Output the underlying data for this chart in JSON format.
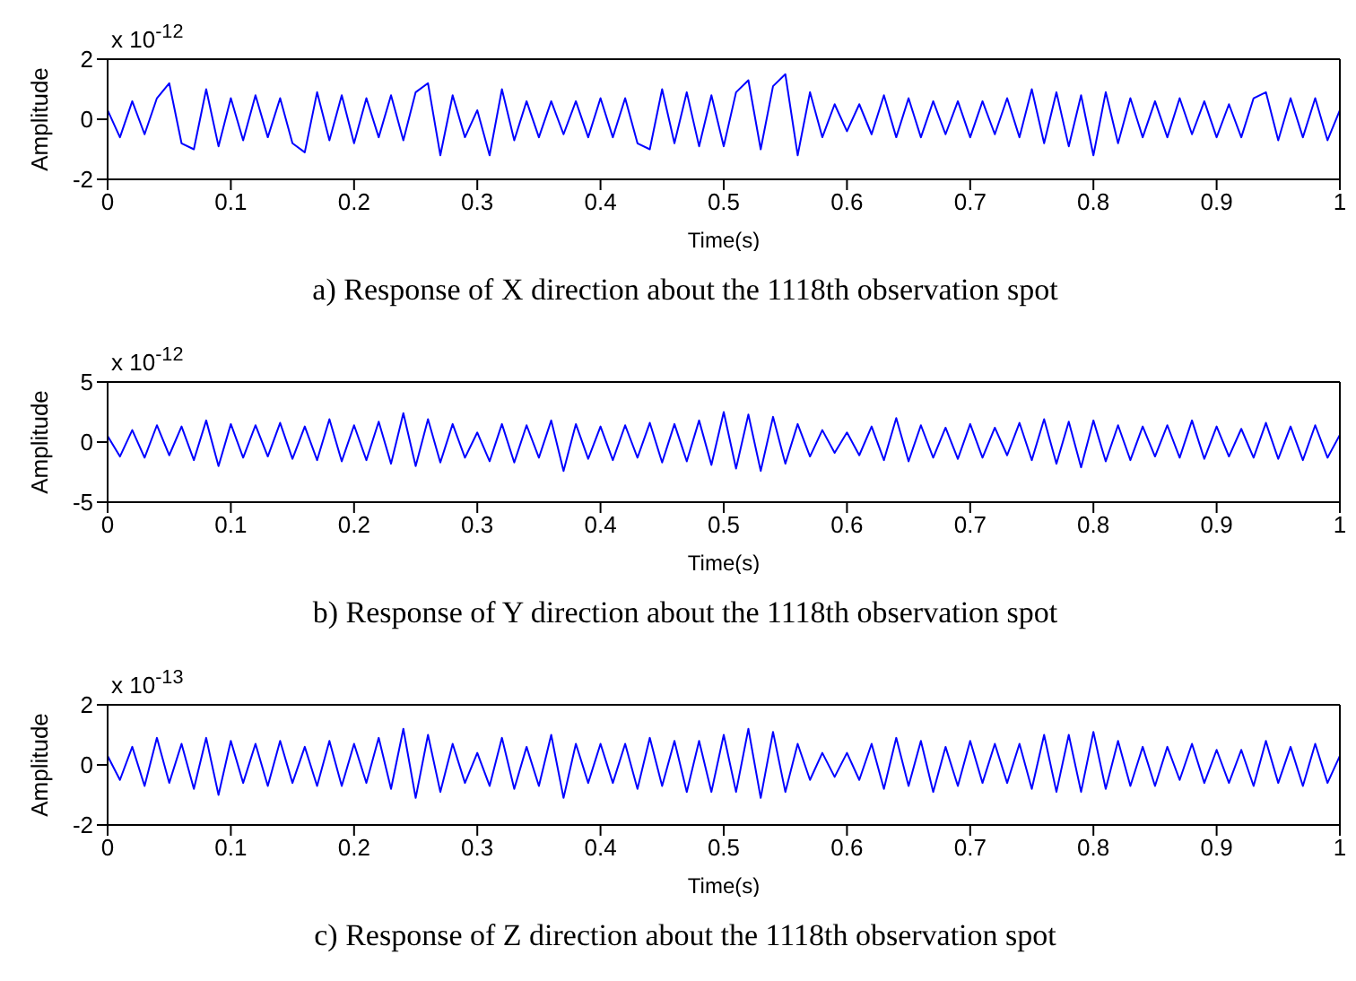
{
  "chart_data": [
    {
      "type": "line",
      "title": "a) Response of X direction about the 1118th observation spot",
      "xlabel": "Time(s)",
      "ylabel": "Amplitude",
      "annotations": [
        "x 10$^{-12}$"
      ],
      "xlim": [
        0,
        1
      ],
      "xticks": [
        0,
        0.1,
        0.2,
        0.3,
        0.4,
        0.5,
        0.6,
        0.7,
        0.8,
        0.9,
        1
      ],
      "ylim": [
        -2,
        2
      ],
      "yticks": [
        -2,
        0,
        2
      ],
      "x": [
        0,
        0.01,
        0.02,
        0.03,
        0.04,
        0.05,
        0.06,
        0.07,
        0.08,
        0.09,
        0.1,
        0.11,
        0.12,
        0.13,
        0.14,
        0.15,
        0.16,
        0.17,
        0.18,
        0.19,
        0.2,
        0.21,
        0.22,
        0.23,
        0.24,
        0.25,
        0.26,
        0.27,
        0.28,
        0.29,
        0.3,
        0.31,
        0.32,
        0.33,
        0.34,
        0.35,
        0.36,
        0.37,
        0.38,
        0.39,
        0.4,
        0.41,
        0.42,
        0.43,
        0.44,
        0.45,
        0.46,
        0.47,
        0.48,
        0.49,
        0.5,
        0.51,
        0.52,
        0.53,
        0.54,
        0.55,
        0.56,
        0.57,
        0.58,
        0.59,
        0.6,
        0.61,
        0.62,
        0.63,
        0.64,
        0.65,
        0.66,
        0.67,
        0.68,
        0.69,
        0.7,
        0.71,
        0.72,
        0.73,
        0.74,
        0.75,
        0.76,
        0.77,
        0.78,
        0.79,
        0.8,
        0.81,
        0.82,
        0.83,
        0.84,
        0.85,
        0.86,
        0.87,
        0.88,
        0.89,
        0.9,
        0.91,
        0.92,
        0.93,
        0.94,
        0.95,
        0.96,
        0.97,
        0.98,
        0.99,
        1
      ],
      "series": [
        {
          "color": "#0000ff",
          "values": [
            0.3,
            -0.6,
            0.6,
            -0.5,
            0.7,
            1.2,
            -0.8,
            -1.0,
            1.0,
            -0.9,
            0.7,
            -0.7,
            0.8,
            -0.6,
            0.7,
            -0.8,
            -1.1,
            0.9,
            -0.7,
            0.8,
            -0.8,
            0.7,
            -0.6,
            0.8,
            -0.7,
            0.9,
            1.2,
            -1.2,
            0.8,
            -0.6,
            0.3,
            -1.2,
            1.0,
            -0.7,
            0.6,
            -0.6,
            0.6,
            -0.5,
            0.6,
            -0.6,
            0.7,
            -0.6,
            0.7,
            -0.8,
            -1.0,
            1.0,
            -0.8,
            0.9,
            -0.9,
            0.8,
            -0.9,
            0.9,
            1.3,
            -1.0,
            1.1,
            1.5,
            -1.2,
            0.9,
            -0.6,
            0.5,
            -0.4,
            0.5,
            -0.5,
            0.8,
            -0.6,
            0.7,
            -0.6,
            0.6,
            -0.5,
            0.6,
            -0.6,
            0.6,
            -0.5,
            0.7,
            -0.6,
            1.0,
            -0.8,
            0.9,
            -0.9,
            0.8,
            -1.2,
            0.9,
            -0.8,
            0.7,
            -0.6,
            0.6,
            -0.6,
            0.7,
            -0.5,
            0.6,
            -0.6,
            0.5,
            -0.6,
            0.7,
            0.9,
            -0.7,
            0.7,
            -0.6,
            0.7,
            -0.7,
            0.3
          ]
        }
      ]
    },
    {
      "type": "line",
      "title": "b) Response of Y direction about the 1118th observation spot",
      "xlabel": "Time(s)",
      "ylabel": "Amplitude",
      "annotations": [
        "x 10$^{-12}$"
      ],
      "xlim": [
        0,
        1
      ],
      "xticks": [
        0,
        0.1,
        0.2,
        0.3,
        0.4,
        0.5,
        0.6,
        0.7,
        0.8,
        0.9,
        1
      ],
      "ylim": [
        -5,
        5
      ],
      "yticks": [
        -5,
        0,
        5
      ],
      "x": [
        0,
        0.01,
        0.02,
        0.03,
        0.04,
        0.05,
        0.06,
        0.07,
        0.08,
        0.09,
        0.1,
        0.11,
        0.12,
        0.13,
        0.14,
        0.15,
        0.16,
        0.17,
        0.18,
        0.19,
        0.2,
        0.21,
        0.22,
        0.23,
        0.24,
        0.25,
        0.26,
        0.27,
        0.28,
        0.29,
        0.3,
        0.31,
        0.32,
        0.33,
        0.34,
        0.35,
        0.36,
        0.37,
        0.38,
        0.39,
        0.4,
        0.41,
        0.42,
        0.43,
        0.44,
        0.45,
        0.46,
        0.47,
        0.48,
        0.49,
        0.5,
        0.51,
        0.52,
        0.53,
        0.54,
        0.55,
        0.56,
        0.57,
        0.58,
        0.59,
        0.6,
        0.61,
        0.62,
        0.63,
        0.64,
        0.65,
        0.66,
        0.67,
        0.68,
        0.69,
        0.7,
        0.71,
        0.72,
        0.73,
        0.74,
        0.75,
        0.76,
        0.77,
        0.78,
        0.79,
        0.8,
        0.81,
        0.82,
        0.83,
        0.84,
        0.85,
        0.86,
        0.87,
        0.88,
        0.89,
        0.9,
        0.91,
        0.92,
        0.93,
        0.94,
        0.95,
        0.96,
        0.97,
        0.98,
        0.99,
        1
      ],
      "series": [
        {
          "color": "#0000ff",
          "values": [
            0.5,
            -1.2,
            1.0,
            -1.3,
            1.4,
            -1.1,
            1.3,
            -1.5,
            1.8,
            -2.0,
            1.5,
            -1.3,
            1.4,
            -1.2,
            1.6,
            -1.4,
            1.3,
            -1.5,
            1.9,
            -1.6,
            1.4,
            -1.5,
            1.7,
            -1.8,
            2.4,
            -2.0,
            1.9,
            -1.7,
            1.5,
            -1.3,
            0.8,
            -1.6,
            1.5,
            -1.7,
            1.4,
            -1.3,
            1.8,
            -2.4,
            1.5,
            -1.4,
            1.3,
            -1.5,
            1.4,
            -1.3,
            1.6,
            -1.7,
            1.5,
            -1.6,
            1.8,
            -1.9,
            2.5,
            -2.2,
            2.3,
            -2.4,
            2.1,
            -1.8,
            1.5,
            -1.2,
            1.0,
            -0.9,
            0.8,
            -1.1,
            1.3,
            -1.5,
            2.0,
            -1.6,
            1.4,
            -1.3,
            1.2,
            -1.4,
            1.5,
            -1.3,
            1.2,
            -1.1,
            1.6,
            -1.5,
            1.9,
            -1.8,
            1.7,
            -2.1,
            1.8,
            -1.6,
            1.4,
            -1.5,
            1.3,
            -1.2,
            1.4,
            -1.3,
            1.8,
            -1.4,
            1.3,
            -1.2,
            1.1,
            -1.3,
            1.6,
            -1.4,
            1.3,
            -1.5,
            1.4,
            -1.3,
            0.6
          ]
        }
      ]
    },
    {
      "type": "line",
      "title": "c) Response of Z direction about the 1118th observation spot",
      "xlabel": "Time(s)",
      "ylabel": "Amplitude",
      "annotations": [
        "x 10$^{-13}$"
      ],
      "xlim": [
        0,
        1
      ],
      "xticks": [
        0,
        0.1,
        0.2,
        0.3,
        0.4,
        0.5,
        0.6,
        0.7,
        0.8,
        0.9,
        1
      ],
      "ylim": [
        -2,
        2
      ],
      "yticks": [
        -2,
        0,
        2
      ],
      "x": [
        0,
        0.01,
        0.02,
        0.03,
        0.04,
        0.05,
        0.06,
        0.07,
        0.08,
        0.09,
        0.1,
        0.11,
        0.12,
        0.13,
        0.14,
        0.15,
        0.16,
        0.17,
        0.18,
        0.19,
        0.2,
        0.21,
        0.22,
        0.23,
        0.24,
        0.25,
        0.26,
        0.27,
        0.28,
        0.29,
        0.3,
        0.31,
        0.32,
        0.33,
        0.34,
        0.35,
        0.36,
        0.37,
        0.38,
        0.39,
        0.4,
        0.41,
        0.42,
        0.43,
        0.44,
        0.45,
        0.46,
        0.47,
        0.48,
        0.49,
        0.5,
        0.51,
        0.52,
        0.53,
        0.54,
        0.55,
        0.56,
        0.57,
        0.58,
        0.59,
        0.6,
        0.61,
        0.62,
        0.63,
        0.64,
        0.65,
        0.66,
        0.67,
        0.68,
        0.69,
        0.7,
        0.71,
        0.72,
        0.73,
        0.74,
        0.75,
        0.76,
        0.77,
        0.78,
        0.79,
        0.8,
        0.81,
        0.82,
        0.83,
        0.84,
        0.85,
        0.86,
        0.87,
        0.88,
        0.89,
        0.9,
        0.91,
        0.92,
        0.93,
        0.94,
        0.95,
        0.96,
        0.97,
        0.98,
        0.99,
        1
      ],
      "series": [
        {
          "color": "#0000ff",
          "values": [
            0.3,
            -0.5,
            0.6,
            -0.7,
            0.9,
            -0.6,
            0.7,
            -0.8,
            0.9,
            -1.0,
            0.8,
            -0.6,
            0.7,
            -0.7,
            0.8,
            -0.6,
            0.6,
            -0.7,
            0.8,
            -0.7,
            0.7,
            -0.6,
            0.9,
            -0.8,
            1.2,
            -1.1,
            1.0,
            -0.9,
            0.7,
            -0.6,
            0.4,
            -0.7,
            0.9,
            -0.8,
            0.6,
            -0.7,
            1.0,
            -1.1,
            0.7,
            -0.6,
            0.7,
            -0.6,
            0.7,
            -0.8,
            0.9,
            -0.7,
            0.8,
            -0.9,
            0.8,
            -0.9,
            1.0,
            -0.9,
            1.2,
            -1.1,
            1.1,
            -0.9,
            0.7,
            -0.5,
            0.4,
            -0.4,
            0.4,
            -0.5,
            0.7,
            -0.8,
            0.9,
            -0.7,
            0.8,
            -0.9,
            0.6,
            -0.7,
            0.8,
            -0.6,
            0.7,
            -0.6,
            0.7,
            -0.8,
            1.0,
            -0.9,
            1.0,
            -0.9,
            1.1,
            -0.8,
            0.8,
            -0.7,
            0.6,
            -0.7,
            0.6,
            -0.5,
            0.7,
            -0.6,
            0.5,
            -0.6,
            0.5,
            -0.7,
            0.8,
            -0.6,
            0.6,
            -0.7,
            0.7,
            -0.6,
            0.3
          ]
        }
      ]
    }
  ]
}
